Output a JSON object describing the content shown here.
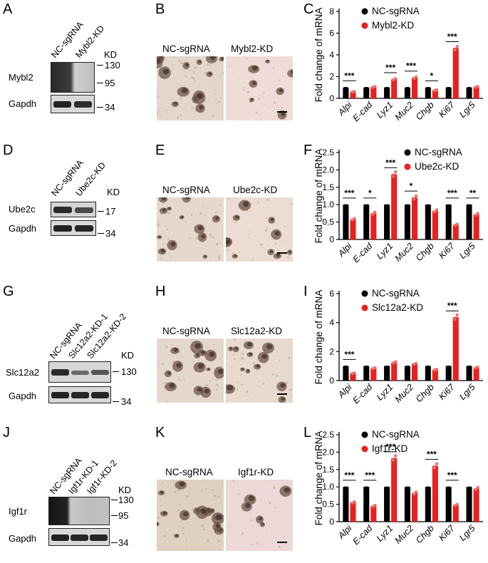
{
  "rows": [
    {
      "wb": {
        "label": "A",
        "lanes": [
          "NC-sgRNA",
          "Mybl2-KD"
        ],
        "unit": "KD",
        "proteins": [
          "Mybl2",
          "Gapdh"
        ],
        "markers": [
          "130",
          "95",
          "34"
        ]
      },
      "micro": {
        "label": "B",
        "titles": [
          "NC-sgRNA",
          "Mybl2-KD"
        ]
      },
      "chart_label": "C"
    },
    {
      "wb": {
        "label": "D",
        "lanes": [
          "NC-sgRNA",
          "Ube2c-KD"
        ],
        "unit": "KD",
        "proteins": [
          "Ube2c",
          "Gapdh"
        ],
        "markers": [
          "17",
          "34"
        ]
      },
      "micro": {
        "label": "E",
        "titles": [
          "NC-sgRNA",
          "Ube2c-KD"
        ]
      },
      "chart_label": "F"
    },
    {
      "wb": {
        "label": "G",
        "lanes": [
          "NC-sgRNA",
          "Slc12a2-KD-1",
          "Slc12a2-KD-2"
        ],
        "unit": "KD",
        "proteins": [
          "Slc12a2",
          "Gapdh"
        ],
        "markers": [
          "130",
          "34"
        ]
      },
      "micro": {
        "label": "H",
        "titles": [
          "NC-sgRNA",
          "Slc12a2-KD"
        ]
      },
      "chart_label": "I"
    },
    {
      "wb": {
        "label": "J",
        "lanes": [
          "NC-sgRNA",
          "Igf1r-KD-1",
          "Igf1r-KD-2"
        ],
        "unit": "KD",
        "proteins": [
          "Igf1r",
          "Gapdh"
        ],
        "markers": [
          "130",
          "95",
          "34"
        ]
      },
      "micro": {
        "label": "K",
        "titles": [
          "NC-sgRNA",
          "Igf1r-KD"
        ]
      },
      "chart_label": "L"
    }
  ],
  "colors": {
    "control": "#000000",
    "kd": "#e8201e",
    "micro_bg_left": "#e6dcd1",
    "micro_bg_right": "#eedcd8"
  },
  "chart_data": [
    {
      "type": "bar",
      "panel": "C",
      "categories": [
        "Alpi",
        "E-cad",
        "Lyz1",
        "Muc2",
        "Chgb",
        "Ki67",
        "Lgr5"
      ],
      "ylabel": "Fold change of mRNA",
      "ylim": [
        0,
        8
      ],
      "yticks": [
        0,
        2,
        4,
        6,
        8
      ],
      "series": [
        {
          "name": "NC-sgRNA",
          "values": [
            1,
            1,
            1,
            1,
            1,
            1,
            1
          ]
        },
        {
          "name": "Mybl2-KD",
          "values": [
            0.6,
            1.05,
            1.75,
            1.9,
            0.75,
            4.6,
            1.05
          ]
        }
      ],
      "significance": [
        "***",
        "",
        "***",
        "***",
        "*",
        "***",
        ""
      ],
      "legend": "top-left"
    },
    {
      "type": "bar",
      "panel": "F",
      "categories": [
        "Alpi",
        "E-cad",
        "Lyz1",
        "Muc2",
        "Chgb",
        "Ki67",
        "Lgr5"
      ],
      "ylabel": "Fold change of mRNA",
      "ylim": [
        0,
        2.5
      ],
      "yticks": [
        0,
        0.5,
        1.0,
        1.5,
        2.0,
        2.5
      ],
      "series": [
        {
          "name": "NC-sgRNA",
          "values": [
            1,
            1,
            1,
            1,
            1,
            1,
            1
          ]
        },
        {
          "name": "Ube2c-KD",
          "values": [
            0.58,
            0.75,
            1.87,
            1.2,
            0.82,
            0.42,
            0.72
          ]
        }
      ],
      "significance": [
        "***",
        "*",
        "***",
        "*",
        "",
        "***",
        "**"
      ],
      "legend": "top-right"
    },
    {
      "type": "bar",
      "panel": "I",
      "categories": [
        "Alpi",
        "E-cad",
        "Lyz1",
        "Muc2",
        "Chgb",
        "Ki67",
        "Lgr5"
      ],
      "ylabel": "Fold change of mRNA",
      "ylim": [
        0,
        6
      ],
      "yticks": [
        0,
        2,
        4,
        6
      ],
      "series": [
        {
          "name": "NC-sgRNA",
          "values": [
            1,
            1,
            1,
            1,
            1,
            1,
            1
          ]
        },
        {
          "name": "Slc12a2-KD",
          "values": [
            0.5,
            0.85,
            1.25,
            1.15,
            0.75,
            4.35,
            0.9
          ]
        }
      ],
      "significance": [
        "***",
        "",
        "",
        "",
        "",
        "***",
        ""
      ],
      "legend": "top-left"
    },
    {
      "type": "bar",
      "panel": "L",
      "categories": [
        "Alpi",
        "E-cad",
        "Lyz1",
        "Muc2",
        "Chgb",
        "Ki67",
        "Lgr5"
      ],
      "ylabel": "Fold change of mRNA",
      "ylim": [
        0,
        2.5
      ],
      "yticks": [
        0,
        0.5,
        1.0,
        1.5,
        2.0,
        2.5
      ],
      "series": [
        {
          "name": "NC-sgRNA",
          "values": [
            1,
            1,
            1,
            1,
            1,
            1,
            1
          ]
        },
        {
          "name": "Igf1r-KD",
          "values": [
            0.55,
            0.45,
            1.82,
            0.82,
            1.6,
            0.48,
            0.95
          ]
        }
      ],
      "significance": [
        "***",
        "***",
        "***",
        "",
        "***",
        "***",
        ""
      ],
      "legend": "top-left"
    }
  ]
}
